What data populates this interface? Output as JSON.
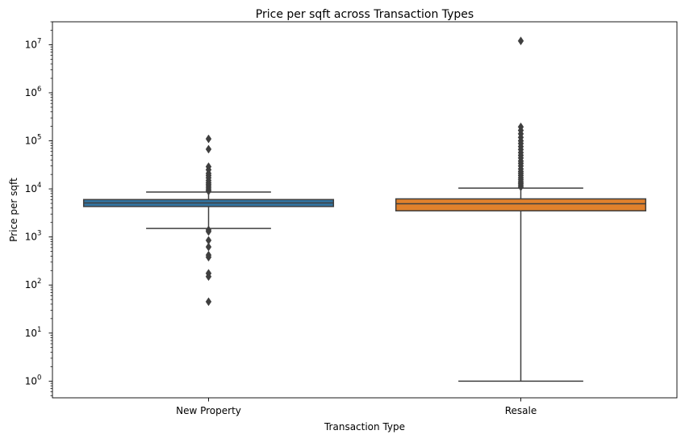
{
  "chart_data": {
    "type": "boxplot",
    "title": "Price per sqft across Transaction Types",
    "xlabel": "Transaction Type",
    "ylabel": "Price per sqft",
    "yscale": "log",
    "ylim": [
      0.45,
      30000000
    ],
    "y_ticks": [
      {
        "value": 1,
        "base": "10",
        "exp": "0"
      },
      {
        "value": 10,
        "base": "10",
        "exp": "1"
      },
      {
        "value": 100,
        "base": "10",
        "exp": "2"
      },
      {
        "value": 1000,
        "base": "10",
        "exp": "3"
      },
      {
        "value": 10000,
        "base": "10",
        "exp": "4"
      },
      {
        "value": 100000,
        "base": "10",
        "exp": "5"
      },
      {
        "value": 1000000,
        "base": "10",
        "exp": "6"
      },
      {
        "value": 10000000,
        "base": "10",
        "exp": "7"
      }
    ],
    "grid": false,
    "legend": "none",
    "categories": [
      "New Property",
      "Resale"
    ],
    "boxes": [
      {
        "category": "New Property",
        "color": "#3274a1",
        "whisker_low": 1500,
        "q1": 4300,
        "median": 5100,
        "q3": 6000,
        "whisker_high": 8600,
        "outliers": [
          45,
          150,
          175,
          380,
          420,
          620,
          850,
          1300,
          1400,
          9000,
          9600,
          10500,
          11500,
          12500,
          13500,
          15000,
          17000,
          19000,
          21000,
          25000,
          29000,
          67000,
          110000
        ]
      },
      {
        "category": "Resale",
        "color": "#e1812c",
        "whisker_low": 1,
        "q1": 3500,
        "median": 4900,
        "q3": 6200,
        "whisker_high": 10400,
        "outliers": [
          11000,
          12000,
          13000,
          14000,
          15500,
          17000,
          19000,
          21000,
          23000,
          26000,
          30000,
          34000,
          38000,
          44000,
          50000,
          57000,
          66000,
          76000,
          88000,
          100000,
          118000,
          140000,
          165000,
          195000,
          12000000
        ]
      }
    ]
  }
}
